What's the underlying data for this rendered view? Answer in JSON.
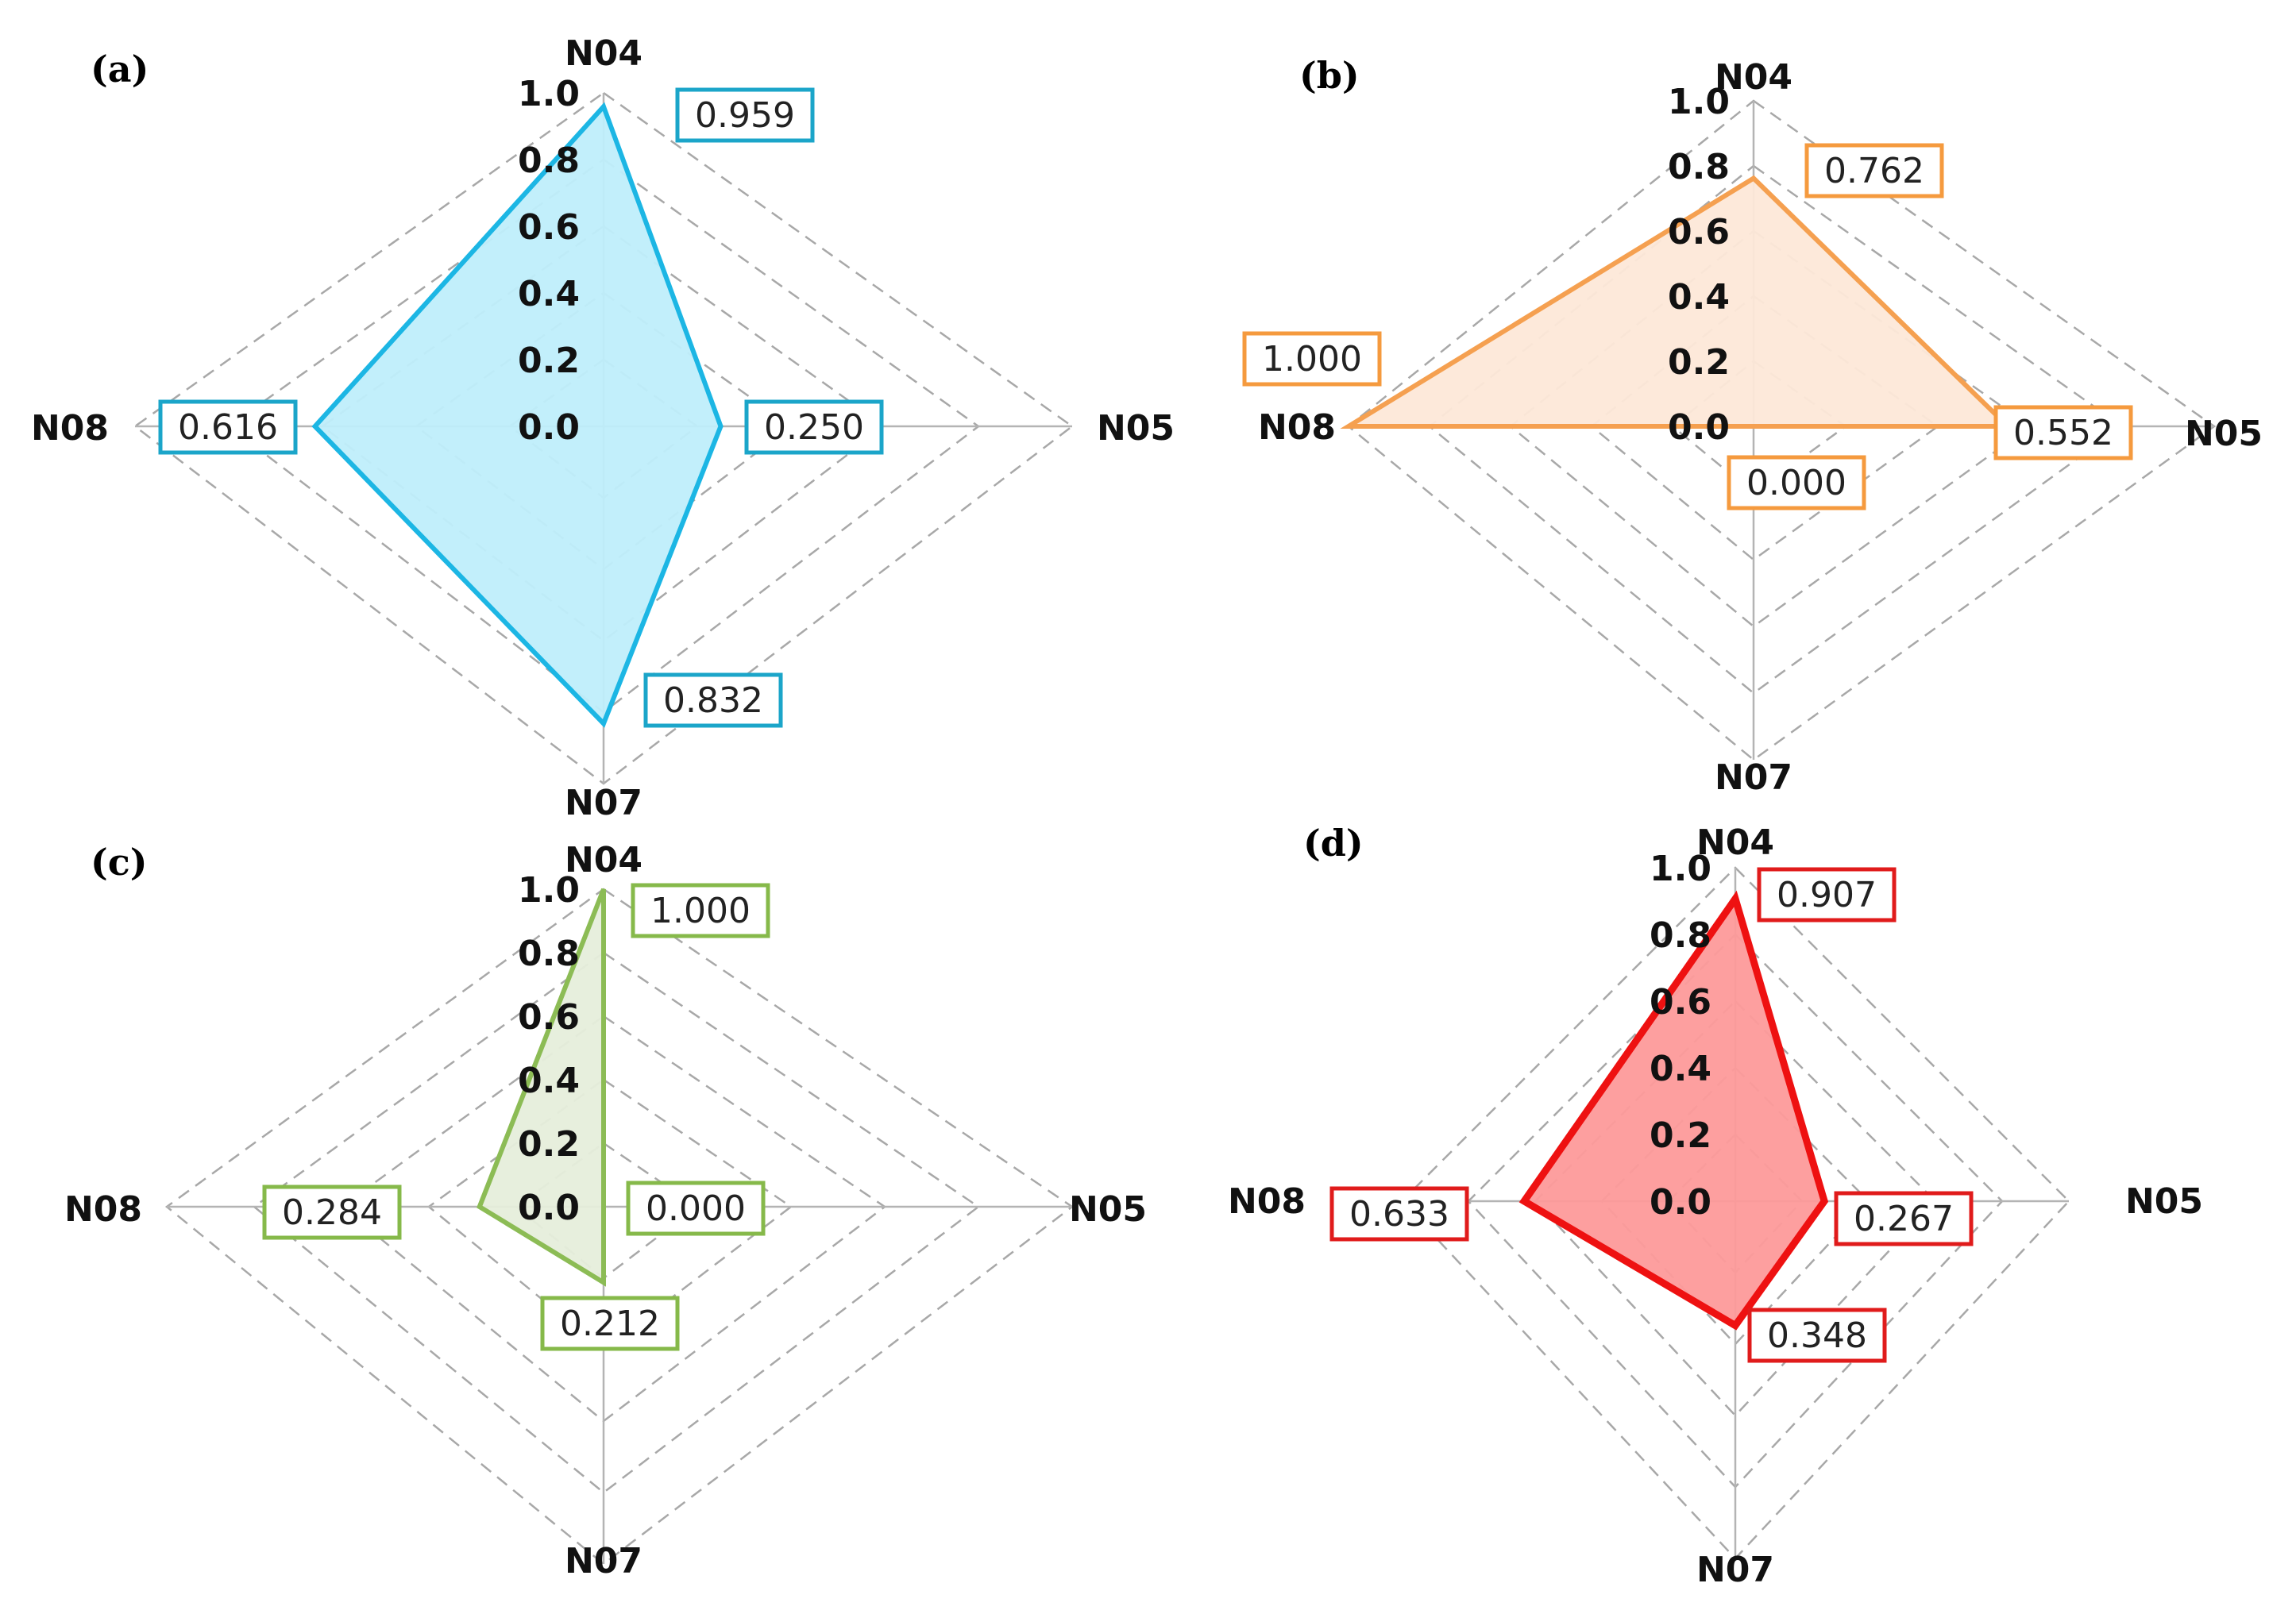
{
  "chart_data": [
    {
      "type": "radar",
      "panel": "(a)",
      "axes": [
        "N04",
        "N05",
        "N07",
        "N08"
      ],
      "values": [
        0.959,
        0.25,
        0.832,
        0.616
      ],
      "value_labels": [
        "0.959",
        "0.250",
        "0.832",
        "0.616"
      ],
      "ticks": [
        "0.0",
        "0.2",
        "0.4",
        "0.6",
        "0.8",
        "1.0"
      ],
      "range": [
        0,
        1
      ],
      "color": "#1cb6e4",
      "fill": "#bfeefb",
      "label_border": "#1ba5c9"
    },
    {
      "type": "radar",
      "panel": "(b)",
      "axes": [
        "N04",
        "N05",
        "N07",
        "N08"
      ],
      "values": [
        0.762,
        0.552,
        0.0,
        1.0
      ],
      "value_labels": [
        "0.762",
        "0.552",
        "0.000",
        "1.000"
      ],
      "ticks": [
        "0.0",
        "0.2",
        "0.4",
        "0.6",
        "0.8",
        "1.0"
      ],
      "range": [
        0,
        1
      ],
      "color": "#f5a050",
      "fill": "#fde8d8",
      "label_border": "#f59a3e"
    },
    {
      "type": "radar",
      "panel": "(c)",
      "axes": [
        "N04",
        "N05",
        "N07",
        "N08"
      ],
      "values": [
        1.0,
        0.0,
        0.212,
        0.284
      ],
      "value_labels": [
        "1.000",
        "0.000",
        "0.212",
        "0.284"
      ],
      "ticks": [
        "0.0",
        "0.2",
        "0.4",
        "0.6",
        "0.8",
        "1.0"
      ],
      "range": [
        0,
        1
      ],
      "color": "#8cbc55",
      "fill": "#e6eedb",
      "label_border": "#86b94a"
    },
    {
      "type": "radar",
      "panel": "(d)",
      "axes": [
        "N04",
        "N05",
        "N07",
        "N08"
      ],
      "values": [
        0.907,
        0.267,
        0.348,
        0.633
      ],
      "value_labels": [
        "0.907",
        "0.267",
        "0.348",
        "0.633"
      ],
      "ticks": [
        "0.0",
        "0.2",
        "0.4",
        "0.6",
        "0.8",
        "1.0"
      ],
      "range": [
        0,
        1
      ],
      "color": "#ee1111",
      "fill": "#fd9a9a",
      "label_border": "#e01b1b"
    }
  ]
}
